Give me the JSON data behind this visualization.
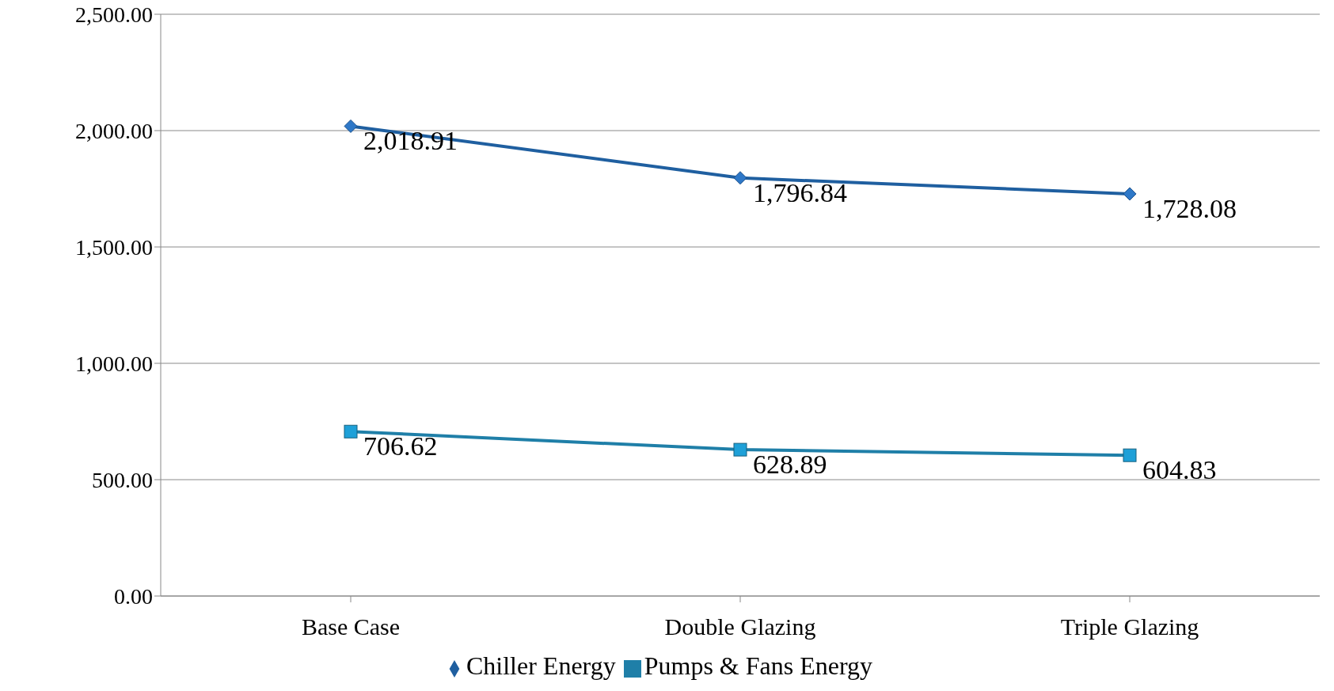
{
  "chart_data": {
    "type": "line",
    "categories": [
      "Base Case",
      "Double Glazing",
      "Triple Glazing"
    ],
    "series": [
      {
        "name": "Chiller Energy",
        "color": "#1f5fa0",
        "marker": "diamond",
        "values": [
          2018.91,
          1796.84,
          1728.08
        ],
        "value_labels": [
          "2,018.91",
          "1,796.84",
          "1,728.08"
        ]
      },
      {
        "name": "Pumps & Fans Energy",
        "color": "#1f7fa8",
        "marker": "square",
        "values": [
          706.62,
          628.89,
          604.83
        ],
        "value_labels": [
          "706.62",
          "628.89",
          "604.83"
        ]
      }
    ],
    "ylim": [
      0,
      2500
    ],
    "yticks": [
      {
        "value": 0,
        "label": "0.00"
      },
      {
        "value": 500,
        "label": "500.00"
      },
      {
        "value": 1000,
        "label": "1,000.00"
      },
      {
        "value": 1500,
        "label": "1,500.00"
      },
      {
        "value": 2000,
        "label": "2,000.00"
      },
      {
        "value": 2500,
        "label": "2,500.00"
      }
    ],
    "grid": "y",
    "legend": "bottom",
    "line_style": "solid"
  }
}
